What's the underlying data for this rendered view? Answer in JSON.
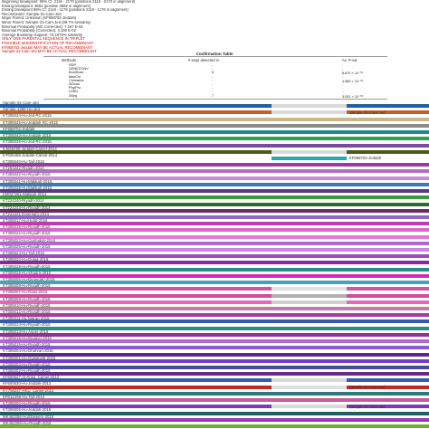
{
  "header": {
    "lines": [
      {
        "text": "Beginning breakpoint: 95% CI: 2116 - 2170 (positions 2116 - 2170 in alignment)",
        "color": "#333333"
      },
      {
        "text": "Ending breakpoint: 3682 (position 3682 in alignment)",
        "color": "#333333"
      },
      {
        "text": "Ending breakpoint 99% CI: 2116 - 1176 (positions 2116 - 1176 in alignment)",
        "color": "#333333"
      },
      {
        "text": "Recombinant: Sample-31-Cam-Jed",
        "color": "#333333"
      },
      {
        "text": "Major Parent: Unknown (KF958702-Jeddah)",
        "color": "#333333"
      },
      {
        "text": "Minor Parent: Sample-31-Cam-Jed (99.7% similarity)",
        "color": "#333333"
      },
      {
        "text": "Binomial Probability (MC Corrected): 7.197 E-04",
        "color": "#333333"
      },
      {
        "text": "Binomial Probability (Corrected): 3.190 E-02",
        "color": "#333333"
      },
      {
        "text": "Average Bootstrap Support: 75.1970% similarity",
        "color": "#333333"
      },
      {
        "text": "ONLY ONE PARENTAL SEQUENCE IN TRIPLET",
        "color": "#cc1111"
      },
      {
        "text": "POSSIBLE MISIDENTIFICATION OF RECOMBINANT",
        "color": "#cc1111"
      },
      {
        "text": "KF958702-Jeddah MAY BE ACTUAL RECOMBINANT",
        "color": "#cc1111"
      },
      {
        "text": "Sample-31-Cam-Jed MAY BE ACTUAL RECOMBINANT",
        "color": "#cc1111"
      }
    ]
  },
  "confirmation_table": {
    "title": "Confirmation Table",
    "columns": [
      "Methods",
      "# seqs detected in",
      "Av. P-val"
    ],
    "rows": [
      {
        "method": "RDP",
        "detected": "-",
        "pval": "-"
      },
      {
        "method": "GENECONV",
        "detected": "-",
        "pval": "-"
      },
      {
        "method": "BootScan",
        "detected": "6",
        "pval": "8.870 × 10⁻⁰⁵"
      },
      {
        "method": "MaxChi",
        "detected": "-",
        "pval": "-"
      },
      {
        "method": "Chimaera",
        "detected": "-",
        "pval": "4.589 × 10⁻⁰⁵"
      },
      {
        "method": "SiScan",
        "detected": "-",
        "pval": "-"
      },
      {
        "method": "PhylPro",
        "detected": "-",
        "pval": "-"
      },
      {
        "method": "LARD",
        "detected": "-",
        "pval": "-"
      },
      {
        "method": "3Seq",
        "detected": "7",
        "pval": "3.051 × 10⁻⁰³"
      }
    ]
  },
  "sequences": [
    {
      "label": "Sample-31-Cam-Jed",
      "segments": [
        {
          "start": 0,
          "end": 0.632,
          "color": "#1f5fa8"
        },
        {
          "start": 0.632,
          "end": 0.808,
          "color": "#d9d9d9"
        },
        {
          "start": 0.808,
          "end": 1.0,
          "color": "#1f5fa8"
        }
      ]
    },
    {
      "label": "Sample-1390-Hu-Jed",
      "segments": [
        {
          "start": 0,
          "end": 0.632,
          "color": "#c0612b"
        },
        {
          "start": 0.632,
          "end": 0.808,
          "color": "#d9d9d9"
        },
        {
          "start": 0.808,
          "end": 1.0,
          "color": "#c0612b"
        }
      ],
      "inner_label": "Sample-31-Cam-Jed"
    },
    {
      "label": "KT305044-Hu-Jed-RC-2015",
      "segments": [
        {
          "start": 0,
          "end": 1.0,
          "color": "#c9b98a"
        }
      ]
    },
    {
      "label": "KT305045-Hu-Jeddah-RC-2015",
      "segments": [
        {
          "start": 0,
          "end": 1.0,
          "color": "#8a8a8a"
        }
      ]
    },
    {
      "label": "KF958702-Jeddah",
      "segments": [
        {
          "start": 0,
          "end": 1.0,
          "color": "#1a8c8c"
        }
      ]
    },
    {
      "label": "KT305043-Hu-Jeddah-2015",
      "segments": [
        {
          "start": 0,
          "end": 1.0,
          "color": "#2e9e5a"
        }
      ]
    },
    {
      "label": "KT305046-Hu-Jed-RC-2015",
      "segments": [
        {
          "start": 0,
          "end": 1.0,
          "color": "#7a4a9e"
        }
      ]
    },
    {
      "label": "KJ650295-Jeddah-Camel-2014",
      "segments": [
        {
          "start": 0,
          "end": 0.632,
          "color": "#4a5a1a"
        },
        {
          "start": 0.632,
          "end": 0.808,
          "color": "#d9d9d9"
        },
        {
          "start": 0.808,
          "end": 1.0,
          "color": "#4a5a1a"
        }
      ]
    },
    {
      "label": "KT026456-Jeddah-Camel-2014",
      "segments": [
        {
          "start": 0,
          "end": 0.632,
          "color": "#ffffff"
        },
        {
          "start": 0.632,
          "end": 0.808,
          "color": "#2aa7a7"
        },
        {
          "start": 0.808,
          "end": 1.0,
          "color": "#ffffff"
        }
      ],
      "inner_label": "KF958702-Jeddah"
    },
    {
      "label": "KT305040-Hu-Taif-2015",
      "segments": [
        {
          "start": 0,
          "end": 1.0,
          "color": "#9c3aa0"
        }
      ]
    },
    {
      "label": "KT283342-Riyadh-2014",
      "segments": [
        {
          "start": 0,
          "end": 1.0,
          "color": "#b070c0"
        }
      ]
    },
    {
      "label": "KT305042-Hu-Riyadh-2015",
      "segments": [
        {
          "start": 0,
          "end": 1.0,
          "color": "#d08ad6"
        }
      ]
    },
    {
      "label": "KT305041-Hu-Makkah-2015",
      "segments": [
        {
          "start": 0,
          "end": 1.0,
          "color": "#3a7abf"
        }
      ]
    },
    {
      "label": "KT305039-Hu-Makkah-2015",
      "segments": [
        {
          "start": 0,
          "end": 1.0,
          "color": "#5a3a8a"
        }
      ]
    },
    {
      "label": "KM027261-Makkah-2014",
      "segments": [
        {
          "start": 0,
          "end": 1.0,
          "color": "#3a9a3a"
        }
      ]
    },
    {
      "label": "KT224240-Riyadh-2014",
      "segments": [
        {
          "start": 0,
          "end": 1.0,
          "color": "#2a6a2a"
        }
      ]
    },
    {
      "label": "KT224243-Hu-Riyadh-2014",
      "segments": [
        {
          "start": 0,
          "end": 1.0,
          "color": "#6a2a6a"
        }
      ]
    },
    {
      "label": "KT224241-Dammam-2014",
      "segments": [
        {
          "start": 0,
          "end": 1.0,
          "color": "#8a6ac0"
        }
      ]
    },
    {
      "label": "KT305017-Hu-Hufuf-2015",
      "segments": [
        {
          "start": 0,
          "end": 1.0,
          "color": "#c23ab0"
        }
      ]
    },
    {
      "label": "KT305019-Hu-Riyadh-2015",
      "segments": [
        {
          "start": 0,
          "end": 1.0,
          "color": "#d46acb"
        }
      ]
    },
    {
      "label": "KT305022-Hu-Riyadh-2015",
      "segments": [
        {
          "start": 0,
          "end": 1.0,
          "color": "#e07ad8"
        }
      ]
    },
    {
      "label": "KT305023-Hu-Qunfudah-2015",
      "segments": [
        {
          "start": 0,
          "end": 1.0,
          "color": "#b06acf"
        }
      ]
    },
    {
      "label": "KT305025-Hu-Riyadh-2015",
      "segments": [
        {
          "start": 0,
          "end": 1.0,
          "color": "#c28adf"
        }
      ]
    },
    {
      "label": "KT305024-Hu-Taif-2015",
      "segments": [
        {
          "start": 0,
          "end": 1.0,
          "color": "#a04ac0"
        }
      ]
    },
    {
      "label": "KT305020-Hu-Dulaa-2015",
      "segments": [
        {
          "start": 0,
          "end": 1.0,
          "color": "#8a2a9a"
        }
      ]
    },
    {
      "label": "KT305028-Hu-Riyadh-2015",
      "segments": [
        {
          "start": 0,
          "end": 1.0,
          "color": "#2a8a8a"
        }
      ]
    },
    {
      "label": "KT305026-Hu-Shaqra-2015",
      "segments": [
        {
          "start": 0,
          "end": 1.0,
          "color": "#d02ab8"
        }
      ]
    },
    {
      "label": "KT305006-Hu-Buraydah-2015",
      "segments": [
        {
          "start": 0,
          "end": 1.0,
          "color": "#4aa0c0"
        }
      ]
    },
    {
      "label": "KT305008-Hu-Riyadh-2015",
      "segments": [
        {
          "start": 0,
          "end": 0.632,
          "color": "#c95a9e"
        },
        {
          "start": 0.632,
          "end": 0.808,
          "color": "#e0e0e0"
        },
        {
          "start": 0.808,
          "end": 1.0,
          "color": "#c95a9e"
        }
      ]
    },
    {
      "label": "KT305007-Hu-Raas-2015",
      "segments": [
        {
          "start": 0,
          "end": 0.632,
          "color": "#d04aa8"
        },
        {
          "start": 0.632,
          "end": 0.808,
          "color": "#b0b0b0"
        },
        {
          "start": 0.808,
          "end": 1.0,
          "color": "#d04aa8"
        }
      ]
    },
    {
      "label": "KT305009-Hu-Riyadh-2015",
      "segments": [
        {
          "start": 0,
          "end": 0.632,
          "color": "#e06ab8"
        },
        {
          "start": 0.632,
          "end": 0.808,
          "color": "#d0d0d0"
        },
        {
          "start": 0.808,
          "end": 1.0,
          "color": "#e06ab8"
        }
      ]
    },
    {
      "label": "KT305010-Hu-Riyadh-2015",
      "segments": [
        {
          "start": 0,
          "end": 1.0,
          "color": "#c07ab0"
        }
      ]
    },
    {
      "label": "KT305012-Hu-Riyadh-2015",
      "segments": [
        {
          "start": 0,
          "end": 1.0,
          "color": "#a83aa0"
        }
      ]
    },
    {
      "label": "KT305011-Hu-Najran-2015",
      "segments": [
        {
          "start": 0,
          "end": 1.0,
          "color": "#3a5ab0"
        }
      ]
    },
    {
      "label": "KT305014-Hu-Riyadh-2015",
      "segments": [
        {
          "start": 0,
          "end": 1.0,
          "color": "#2a8a8a"
        }
      ]
    },
    {
      "label": "KT305013-Hu-Aseer-2015",
      "segments": [
        {
          "start": 0,
          "end": 1.0,
          "color": "#9a2a9a"
        }
      ]
    },
    {
      "label": "KT305016-Hu-Buqayq-2015",
      "segments": [
        {
          "start": 0,
          "end": 1.0,
          "color": "#b06acf"
        }
      ]
    },
    {
      "label": "KT305015-Hu-Riyadh-2015",
      "segments": [
        {
          "start": 0,
          "end": 1.0,
          "color": "#8a5ad0"
        }
      ]
    },
    {
      "label": "KT305004-Hu-Dhahran-2015",
      "segments": [
        {
          "start": 0,
          "end": 1.0,
          "color": "#5a2a8a"
        }
      ]
    },
    {
      "label": "KT305001-Hu-Quwaiyah-2015",
      "segments": [
        {
          "start": 0,
          "end": 1.0,
          "color": "#7a3ac0"
        }
      ]
    },
    {
      "label": "KT305003-Hu-Riyadh-2015",
      "segments": [
        {
          "start": 0,
          "end": 1.0,
          "color": "#4a4a9a"
        }
      ]
    },
    {
      "label": "KT305002-Hu-Riyadh-2015",
      "segments": [
        {
          "start": 0,
          "end": 1.0,
          "color": "#6a2a8a"
        }
      ]
    },
    {
      "label": "KF600627-Al-Ahsa_Camel-2013",
      "segments": [
        {
          "start": 0,
          "end": 0.632,
          "color": "#3a5ab0"
        },
        {
          "start": 0.632,
          "end": 0.808,
          "color": "#d9d9d9"
        },
        {
          "start": 0.808,
          "end": 1.0,
          "color": "#3a5ab0"
        }
      ]
    },
    {
      "label": "KF600630-Hu-Jeddah-2013",
      "segments": [
        {
          "start": 0,
          "end": 0.632,
          "color": "#c02a2a"
        },
        {
          "start": 0.632,
          "end": 0.808,
          "color": "#e0e0e0"
        },
        {
          "start": 0.808,
          "end": 1.0,
          "color": "#c02a2a"
        }
      ],
      "inner_label": "Sample-31-Cam-Jed"
    },
    {
      "label": "KY798247-HKU_Camel-2014",
      "segments": [
        {
          "start": 0,
          "end": 1.0,
          "color": "#2a7a7a"
        }
      ]
    },
    {
      "label": "KR011266-Hu-Taif-2014",
      "segments": [
        {
          "start": 0,
          "end": 1.0,
          "color": "#c95a9e"
        }
      ]
    },
    {
      "label": "KT305000-Hu-Riyadh-2015",
      "segments": [
        {
          "start": 0,
          "end": 0.632,
          "color": "#7a3ac0"
        },
        {
          "start": 0.632,
          "end": 0.808,
          "color": "#d9d9d9"
        },
        {
          "start": 0.808,
          "end": 1.0,
          "color": "#7a3ac0"
        }
      ],
      "inner_label": "Sample-31-Cam-Jed"
    },
    {
      "label": "KT305005-Hu-Jeddah-2015",
      "segments": [
        {
          "start": 0,
          "end": 1.0,
          "color": "#1f5f5f"
        }
      ]
    },
    {
      "label": "MK462256-Hu/Qaseem-2018",
      "segments": [
        {
          "start": 0,
          "end": 1.0,
          "color": "#9a3ab0"
        }
      ]
    },
    {
      "label": "MK462259-Hu-Riyadh-2018",
      "segments": [
        {
          "start": 0,
          "end": 1.0,
          "color": "#6ab02a"
        }
      ]
    }
  ]
}
